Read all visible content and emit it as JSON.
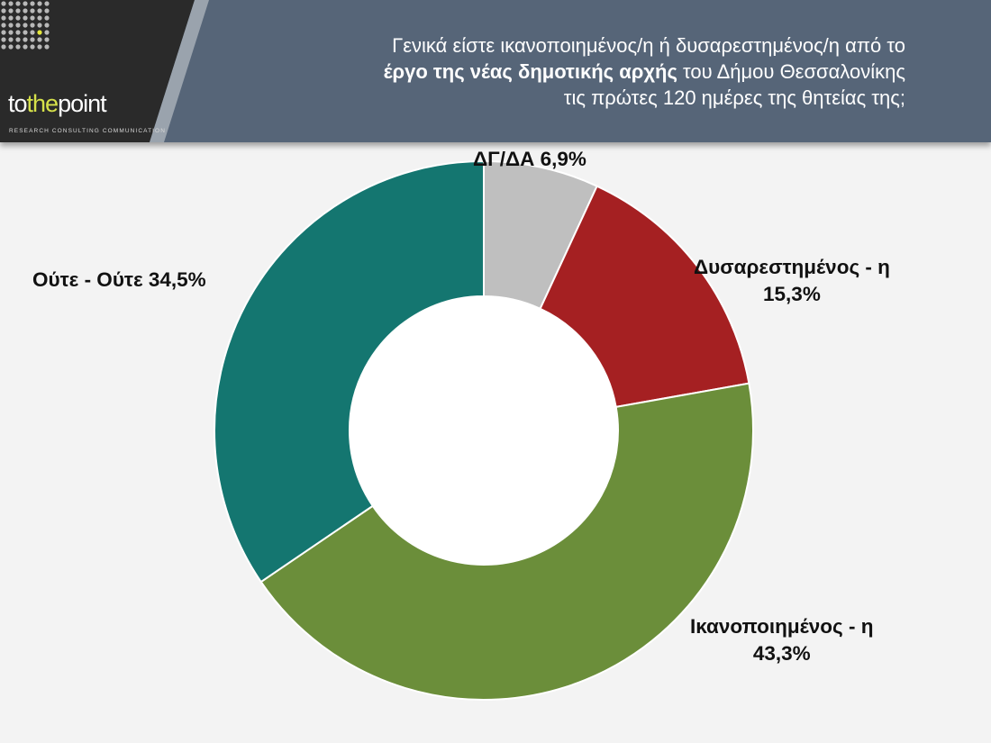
{
  "header": {
    "logo": {
      "prefix": "to",
      "highlight": "the",
      "suffix": "point",
      "tagline": "RESEARCH  CONSULTING  COMMUNICATION"
    },
    "question": {
      "line1": "Γενικά είστε ικανοποιημένος/η ή δυσαρεστημένος/η από το",
      "line2_bold": "έργο της νέας δημοτικής αρχής",
      "line2_rest": " του Δήμου Θεσσαλονίκης",
      "line3": "τις πρώτες 120 ημέρες της θητείας της;"
    }
  },
  "labels": {
    "dgda": "ΔΓ/ΔΑ 6,9%",
    "dissatisfied_name": "Δυσαρεστημένος - η",
    "dissatisfied_value": "15,3%",
    "satisfied_name": "Ικανοποιημένος - η",
    "satisfied_value": "43,3%",
    "neither": "Ούτε - Ούτε 34,5%"
  },
  "chart_data": {
    "type": "pie",
    "style": "donut",
    "start": "12 o'clock, clockwise",
    "categories": [
      "ΔΓ/ΔΑ",
      "Δυσαρεστημένος - η",
      "Ικανοποιημένος - η",
      "Ούτε - Ούτε"
    ],
    "values": [
      6.9,
      15.3,
      43.3,
      34.5
    ],
    "colors": [
      "#bfbfbf",
      "#a52022",
      "#6b8e3a",
      "#147670"
    ]
  }
}
